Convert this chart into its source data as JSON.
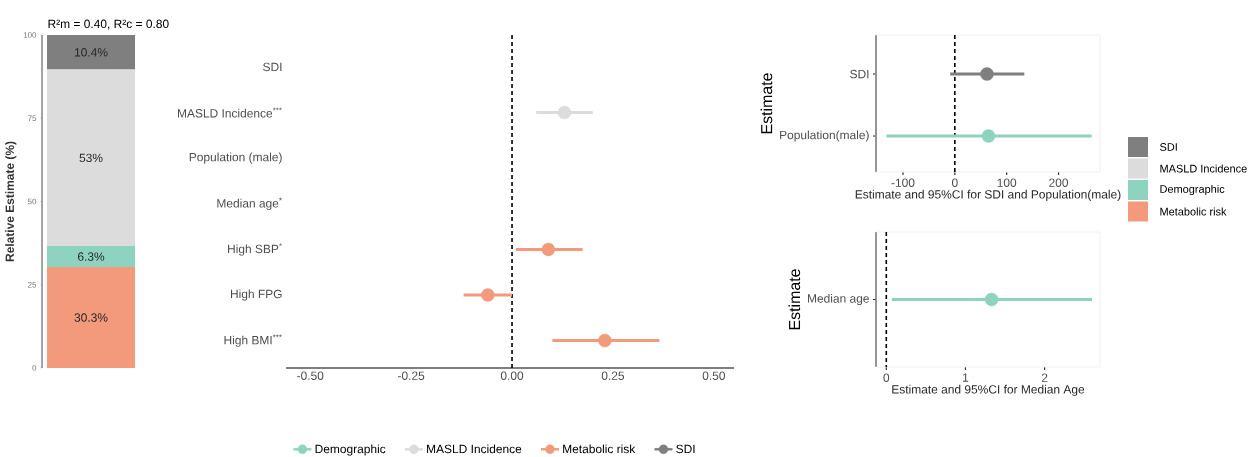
{
  "chart_data": [
    {
      "type": "bar",
      "stacked": true,
      "title": "R²m = 0.40, R²c = 0.80",
      "ylabel": "Relative Estimate (%)",
      "categories": [
        null
      ],
      "series": [
        {
          "name": "Metabolic risk",
          "color": "#f29a7b",
          "values": [
            30.3
          ],
          "value_labels": [
            "30.3%"
          ]
        },
        {
          "name": "Demographic",
          "color": "#8ed3c0",
          "values": [
            6.3
          ],
          "value_labels": [
            "6.3%"
          ]
        },
        {
          "name": "MASLD Incidence",
          "color": "#dcdcdc",
          "values": [
            53
          ],
          "value_labels": [
            "53%"
          ]
        },
        {
          "name": "SDI",
          "color": "#7f7f7f",
          "values": [
            10.4
          ],
          "value_labels": [
            "10.4%"
          ]
        }
      ],
      "ylim": [
        0,
        100
      ],
      "yticks": [
        0,
        25,
        50,
        75,
        100
      ],
      "tick_labels": "y",
      "legend": "right"
    },
    {
      "type": "scatter",
      "orientation": "horizontal",
      "categories": [
        "SDI",
        "MASLD Incidence$^{***}$",
        "Population (male)",
        "Median age$^{*}$",
        "High SBP$^{*}$",
        "High FPG",
        "High BMI$^{***}$"
      ],
      "series": [
        {
          "name": "Demographic",
          "color": "#8ed3c0",
          "values": [
            null,
            null,
            null,
            null,
            null,
            null,
            null
          ]
        },
        {
          "name": "MASLD Incidence",
          "color": "#dcdcdc",
          "values": [
            null,
            0.13,
            null,
            null,
            null,
            null,
            null
          ],
          "errors": [
            null,
            [
              0.06,
              0.2
            ],
            null,
            null,
            null,
            null,
            null
          ]
        },
        {
          "name": "Metabolic risk",
          "color": "#f29a7b",
          "values": [
            null,
            null,
            null,
            null,
            0.09,
            -0.06,
            0.23
          ],
          "errors": [
            null,
            null,
            null,
            null,
            [
              0.01,
              0.175
            ],
            [
              -0.12,
              0.0
            ],
            [
              0.1,
              0.365
            ]
          ]
        },
        {
          "name": "SDI",
          "color": "#7f7f7f",
          "values": [
            null,
            null,
            null,
            null,
            null,
            null,
            null
          ]
        }
      ],
      "xlim": [
        -0.56,
        0.55
      ],
      "xticks": [
        {
          "value": -0.5,
          "label": "-0.50"
        },
        {
          "value": -0.25,
          "label": "-0.25"
        },
        {
          "value": 0,
          "label": "0.00"
        },
        {
          "value": 0.25,
          "label": "0.25"
        },
        {
          "value": 0.5,
          "label": "0.50"
        }
      ],
      "ref_lines": [
        {
          "axis": "x",
          "value": 0,
          "line_style": "dashed"
        }
      ],
      "marker": "circle",
      "legend": "bottom"
    },
    {
      "type": "scatter",
      "orientation": "horizontal",
      "xlabel": "Estimate and 95%CI for SDI and Population(male)",
      "ylabel": "Estimate",
      "categories": [
        "SDI",
        "Population(male)"
      ],
      "series": [
        {
          "color": "#7f7f7f",
          "values": [
            62,
            null
          ],
          "errors": [
            [
              -9,
              134
            ],
            null
          ]
        },
        {
          "color": "#8ed3c0",
          "values": [
            null,
            65
          ],
          "errors": [
            null,
            [
              -132,
              264
            ]
          ]
        }
      ],
      "xlim": [
        -152,
        280
      ],
      "xticks": [
        -100,
        0,
        100,
        200
      ],
      "ref_lines": [
        {
          "axis": "x",
          "value": 0,
          "line_style": "dashed"
        }
      ],
      "marker": "circle"
    },
    {
      "type": "scatter",
      "orientation": "horizontal",
      "xlabel": "Estimate and 95%CI for Median Age",
      "ylabel": "Estimate",
      "categories": [
        "Median age"
      ],
      "series": [
        {
          "color": "#8ed3c0",
          "values": [
            1.33
          ],
          "errors": [
            [
              0.07,
              2.6
            ]
          ]
        }
      ],
      "xlim": [
        -0.13,
        2.7
      ],
      "xticks": [
        0,
        1,
        2
      ],
      "ref_lines": [
        {
          "axis": "x",
          "value": 0,
          "line_style": "dashed"
        }
      ],
      "marker": "circle"
    }
  ]
}
